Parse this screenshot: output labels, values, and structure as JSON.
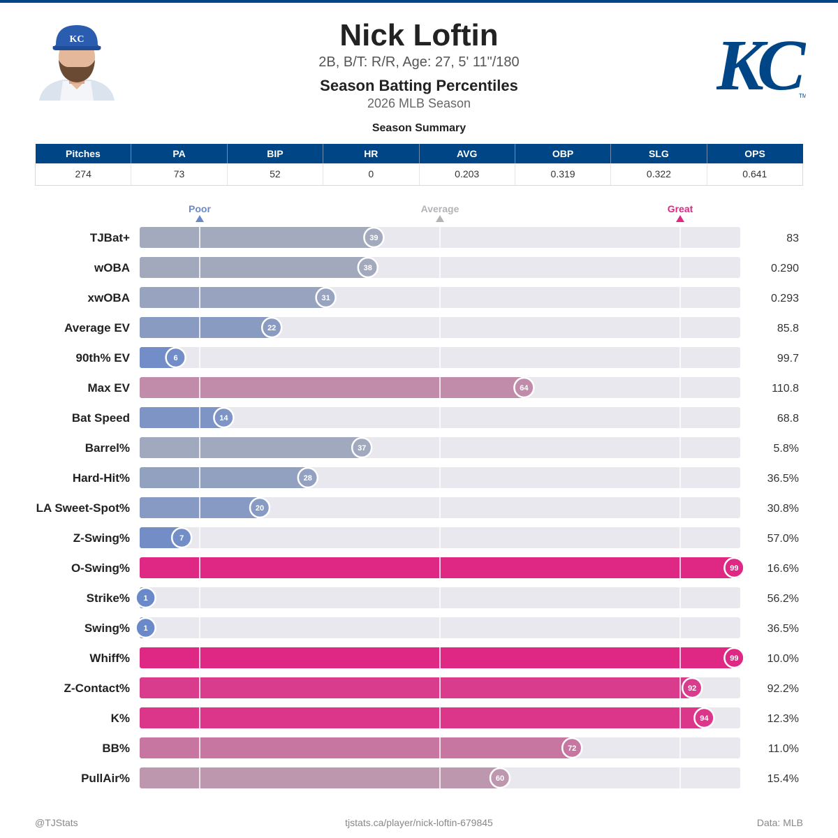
{
  "player": {
    "name": "Nick Loftin",
    "bio": "2B, B/T: R/R, Age: 27, 5' 11\"/180"
  },
  "chart": {
    "title": "Season Batting Percentiles",
    "subtitle": "2026 MLB Season"
  },
  "summary": {
    "title": "Season Summary",
    "headers": [
      "Pitches",
      "PA",
      "BIP",
      "HR",
      "AVG",
      "OBP",
      "SLG",
      "OPS"
    ],
    "values": [
      "274",
      "73",
      "52",
      "0",
      "0.203",
      "0.319",
      "0.322",
      "0.641"
    ]
  },
  "colors": {
    "brand": "#004687",
    "poor": "#6a89c9",
    "average": "#b4b4b9",
    "great": "#df2884",
    "track": "#e8e8ee"
  },
  "chart_data": {
    "type": "bar",
    "orientation": "horizontal",
    "xlim": [
      0,
      100
    ],
    "reference_lines": [
      {
        "label": "Poor",
        "value": 10
      },
      {
        "label": "Average",
        "value": 50
      },
      {
        "label": "Great",
        "value": 90
      }
    ],
    "categories": [
      "TJBat+",
      "wOBA",
      "xwOBA",
      "Average EV",
      "90th% EV",
      "Max EV",
      "Bat Speed",
      "Barrel%",
      "Hard-Hit%",
      "LA Sweet-Spot%",
      "Z-Swing%",
      "O-Swing%",
      "Strike%",
      "Swing%",
      "Whiff%",
      "Z-Contact%",
      "K%",
      "BB%",
      "PullAir%"
    ],
    "percentiles": [
      39,
      38,
      31,
      22,
      6,
      64,
      14,
      37,
      28,
      20,
      7,
      99,
      1,
      1,
      99,
      92,
      94,
      72,
      60
    ],
    "stat_values": [
      "83",
      "0.290",
      "0.293",
      "85.8",
      "99.7",
      "110.8",
      "68.8",
      "5.8%",
      "36.5%",
      "30.8%",
      "57.0%",
      "16.6%",
      "56.2%",
      "36.5%",
      "10.0%",
      "92.2%",
      "12.3%",
      "11.0%",
      "15.4%"
    ]
  },
  "footer": {
    "left": "@TJStats",
    "center": "tjstats.ca/player/nick-loftin-679845",
    "right": "Data: MLB"
  },
  "logo": {
    "text": "KC",
    "cap_text": "KC",
    "trademark": "TM"
  }
}
